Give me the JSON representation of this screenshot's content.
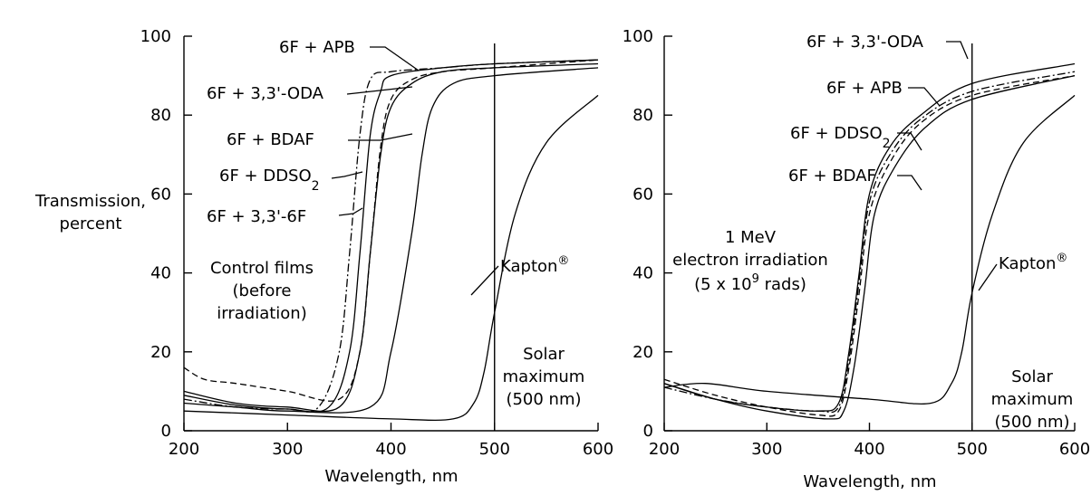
{
  "chart_data": [
    {
      "type": "line",
      "ylabel_line1": "Transmission,",
      "ylabel_line2": "percent",
      "xlabel": "Wavelength, nm",
      "xlim": [
        200,
        600
      ],
      "ylim": [
        0,
        100
      ],
      "xticks": [
        "200",
        "300",
        "400",
        "500",
        "600"
      ],
      "yticks": [
        "0",
        "20",
        "40",
        "60",
        "80",
        "100"
      ],
      "annotation_lines": [
        "Control films",
        "(before",
        "irradiation)"
      ],
      "marker_line_x": 500,
      "marker_text": [
        "Solar",
        "maximum",
        "(500 nm)"
      ],
      "series": [
        {
          "name": "6F + APB",
          "dash": "dashdot",
          "x": [
            200,
            250,
            300,
            330,
            350,
            360,
            370,
            380,
            400,
            450,
            500,
            600
          ],
          "y": [
            8,
            6,
            5.5,
            6,
            20,
            45,
            75,
            89,
            91,
            92,
            93,
            94
          ]
        },
        {
          "name": "6F + 3,3'-ODA",
          "dash": "solid",
          "x": [
            200,
            250,
            300,
            340,
            360,
            370,
            380,
            390,
            400,
            450,
            500,
            600
          ],
          "y": [
            9,
            6.5,
            5.5,
            6,
            20,
            45,
            75,
            86,
            90,
            92,
            93,
            94
          ]
        },
        {
          "name": "6F + BDAF",
          "dash": "solid",
          "x": [
            200,
            250,
            300,
            350,
            370,
            380,
            390,
            400,
            420,
            450,
            500,
            600
          ],
          "y": [
            10,
            7,
            6,
            6,
            20,
            45,
            70,
            82,
            88,
            91,
            92,
            93
          ]
        },
        {
          "name": "6F + DDSO2",
          "dash": "dashed",
          "x": [
            200,
            220,
            250,
            300,
            350,
            370,
            380,
            390,
            400,
            420,
            450,
            500,
            600
          ],
          "y": [
            16,
            13,
            12,
            10,
            8,
            20,
            45,
            72,
            84,
            89,
            91,
            92,
            94
          ]
        },
        {
          "name": "6F + 3,3'-6F",
          "dash": "solid",
          "x": [
            200,
            250,
            300,
            380,
            400,
            420,
            430,
            440,
            460,
            500,
            600
          ],
          "y": [
            7,
            6,
            5,
            6,
            20,
            50,
            70,
            82,
            88,
            90,
            92
          ]
        },
        {
          "name": "Kapton®",
          "dash": "solid",
          "x": [
            200,
            300,
            400,
            460,
            480,
            490,
            500,
            520,
            550,
            600
          ],
          "y": [
            5,
            4,
            3,
            3,
            7,
            15,
            30,
            55,
            73,
            85
          ]
        }
      ]
    },
    {
      "type": "line",
      "xlabel": "Wavelength, nm",
      "xlim": [
        200,
        600
      ],
      "ylim": [
        0,
        100
      ],
      "xticks": [
        "200",
        "300",
        "400",
        "500",
        "600"
      ],
      "yticks": [
        "0",
        "20",
        "40",
        "60",
        "80",
        "100"
      ],
      "annotation_lines": [
        "1 MeV",
        "electron irradiation",
        "(5 x 10",
        "9",
        " rads)"
      ],
      "marker_line_x": 500,
      "marker_text": [
        "Solar",
        "maximum",
        "(500 nm)"
      ],
      "series": [
        {
          "name": "6F + 3,3'-ODA",
          "dash": "solid",
          "x": [
            200,
            250,
            300,
            350,
            370,
            380,
            390,
            400,
            420,
            450,
            500,
            600
          ],
          "y": [
            12,
            8,
            6,
            5,
            7,
            20,
            40,
            60,
            72,
            80,
            88,
            93
          ]
        },
        {
          "name": "6F + APB",
          "dash": "dashdot",
          "x": [
            200,
            250,
            300,
            350,
            370,
            380,
            390,
            400,
            420,
            450,
            500,
            600
          ],
          "y": [
            11,
            8,
            6,
            5,
            6,
            18,
            38,
            58,
            70,
            79,
            86,
            91
          ]
        },
        {
          "name": "6F + DDSO2",
          "dash": "dashed",
          "x": [
            200,
            250,
            300,
            350,
            370,
            380,
            390,
            400,
            420,
            450,
            500,
            600
          ],
          "y": [
            13,
            9,
            6,
            4,
            5,
            16,
            35,
            55,
            68,
            78,
            85,
            90
          ]
        },
        {
          "name": "6F + BDAF",
          "dash": "solid",
          "x": [
            200,
            250,
            300,
            360,
            375,
            385,
            395,
            405,
            425,
            455,
            500,
            600
          ],
          "y": [
            12,
            8,
            5,
            3,
            5,
            16,
            35,
            55,
            67,
            77,
            84,
            90
          ]
        },
        {
          "name": "Kapton®",
          "dash": "solid",
          "x": [
            200,
            240,
            300,
            400,
            460,
            480,
            490,
            500,
            520,
            550,
            600
          ],
          "y": [
            11,
            12,
            10,
            8,
            7,
            12,
            20,
            35,
            55,
            73,
            85
          ]
        }
      ]
    }
  ]
}
